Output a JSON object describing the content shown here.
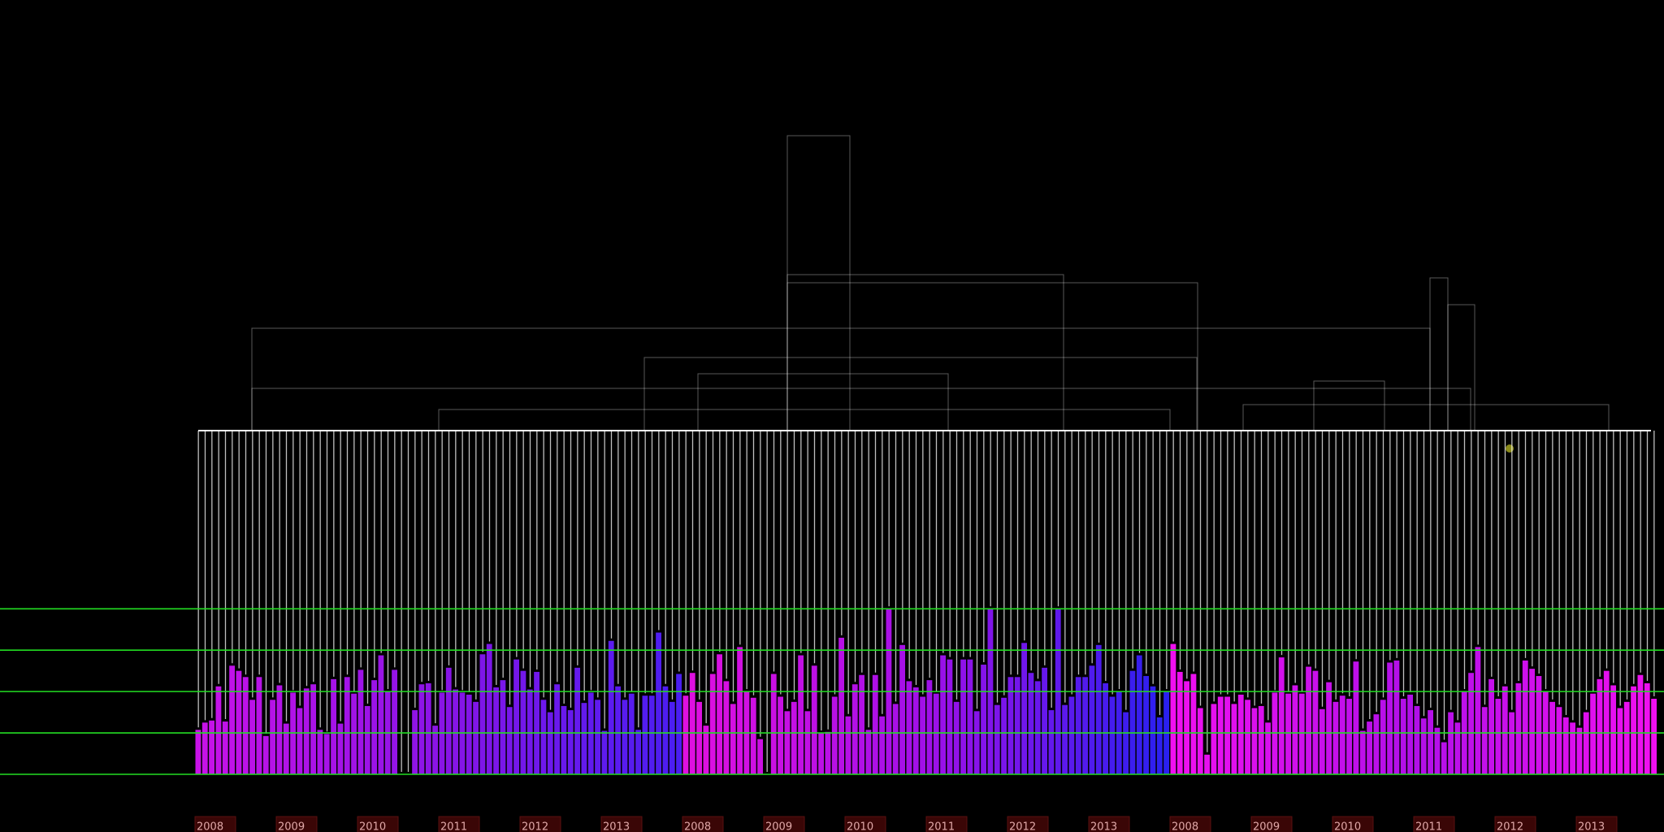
{
  "chart_data": {
    "type": "bar",
    "x_labels": [
      "2008",
      "2009",
      "2010",
      "2011",
      "2012",
      "2013",
      "2008",
      "2009",
      "2010",
      "2011",
      "2012",
      "2013",
      "2008",
      "2009",
      "2010",
      "2011",
      "2012",
      "2013"
    ],
    "series": [
      {
        "color_stops": [
          "#c812e8",
          "#8a14e6",
          "#4a1ef2"
        ],
        "values": [
          43,
          50,
          52,
          85,
          51,
          105,
          100,
          94,
          72,
          94,
          37,
          72,
          86,
          49,
          79,
          64,
          83,
          87,
          43,
          39,
          92,
          49,
          94,
          78,
          101,
          66,
          91,
          115,
          80,
          101,
          0,
          0,
          62,
          87,
          88,
          47,
          79,
          103,
          82,
          79,
          77,
          70,
          116,
          126,
          84,
          91,
          65,
          111,
          100,
          82,
          99,
          72,
          60,
          87,
          66,
          62,
          103,
          69,
          79,
          72,
          42,
          129,
          85,
          72,
          78,
          43,
          76,
          76,
          137,
          85,
          70,
          97
        ]
      },
      {
        "color_stops": [
          "#e010e0",
          "#a010e8",
          "#2a20f0"
        ],
        "values": [
          76,
          98,
          70,
          47,
          97,
          116,
          90,
          68,
          123,
          80,
          74,
          34,
          0,
          97,
          75,
          61,
          70,
          115,
          61,
          105,
          40,
          41,
          75,
          132,
          56,
          87,
          96,
          43,
          96,
          56,
          160,
          68,
          125,
          90,
          84,
          75,
          91,
          78,
          115,
          111,
          70,
          111,
          111,
          61,
          106,
          160,
          67,
          74,
          94,
          94,
          127,
          98,
          90,
          103,
          62,
          160,
          67,
          75,
          94,
          94,
          105,
          125,
          88,
          75,
          80,
          60,
          100,
          115,
          95,
          85,
          55,
          80
        ]
      },
      {
        "color_stops": [
          "#f010f0",
          "#b010e8",
          "#f010f0"
        ],
        "values": [
          126,
          99,
          90,
          97,
          64,
          19,
          68,
          75,
          75,
          68,
          77,
          72,
          64,
          66,
          50,
          79,
          113,
          78,
          86,
          78,
          104,
          100,
          63,
          89,
          70,
          76,
          73,
          109,
          42,
          51,
          58,
          72,
          108,
          110,
          73,
          77,
          66,
          54,
          62,
          45,
          31,
          60,
          50,
          80,
          98,
          123,
          65,
          92,
          73,
          85,
          60,
          88,
          110,
          102,
          95,
          80,
          70,
          65,
          55,
          50,
          45,
          60,
          78,
          92,
          100,
          86,
          64,
          70,
          85,
          96,
          88,
          73
        ]
      }
    ],
    "ylim": [
      0,
      180
    ],
    "yticks": [
      0,
      40,
      80,
      120,
      160
    ],
    "grid": true,
    "grid_color": "#22dd22"
  }
}
